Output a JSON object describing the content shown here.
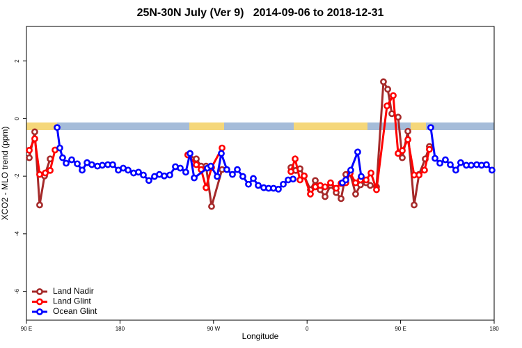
{
  "chart_data": {
    "type": "line",
    "title": "25N-30N July (Ver 9)   2014-09-06 to 2018-12-31",
    "xlabel": "Longitude",
    "ylabel": "XCO2 - MLO trend (ppm)",
    "xlim": [
      90,
      540
    ],
    "ylim": [
      -7.0,
      3.2
    ],
    "xticks": [
      {
        "value": 90,
        "label": "90 E"
      },
      180,
      {
        "value": 270,
        "label": "90 W"
      },
      {
        "value": 360,
        "label": "0"
      },
      {
        "value": 450,
        "label": "90 E"
      },
      {
        "value": 540,
        "label": "180"
      }
    ],
    "yticks": [
      -6,
      -4,
      -2,
      0,
      2
    ],
    "legend": "bottom-left",
    "series": [
      {
        "name": "Land Nadir",
        "color": "#a52a2a",
        "x": [
          92.7,
          98,
          102.7,
          107.4,
          112.8,
          180,
          245.3,
          253.4,
          258.1,
          262.8,
          268.1,
          278.2,
          310,
          344.5,
          349.1,
          353.2,
          357.2,
          363.2,
          367.9,
          372.6,
          377.3,
          382.6,
          388.0,
          392.7,
          397.3,
          401.4,
          406.7,
          411.4,
          416.8,
          420.8,
          426.8,
          433.5,
          437.6,
          441.6,
          447.6,
          451.6,
          457.0,
          463.0,
          467.7,
          473.7,
          477.7
        ],
        "values": [
          -1.36,
          -0.46,
          -3.0,
          -1.99,
          -1.4,
          null,
          -1.26,
          -1.4,
          -1.65,
          -1.65,
          -3.05,
          -1.77,
          null,
          -1.7,
          -1.8,
          -1.74,
          -1.99,
          -2.47,
          -2.15,
          -2.47,
          -2.71,
          -2.32,
          -2.57,
          -2.78,
          -1.94,
          -1.89,
          -2.62,
          -2.3,
          -2.23,
          -2.32,
          -2.37,
          1.28,
          1.02,
          0.17,
          0.05,
          -1.36,
          -0.44,
          -3.0,
          -1.94,
          -1.4,
          -0.97
        ]
      },
      {
        "name": "Land Glint",
        "color": "#ff0000",
        "x": [
          92.7,
          98,
          102.7,
          108.1,
          112.8,
          117.5,
          180,
          245.3,
          253.4,
          258.1,
          262.8,
          268.1,
          278.2,
          310,
          344.5,
          348.5,
          353.2,
          357.2,
          363.2,
          367.9,
          372.6,
          377.3,
          382.6,
          388.0,
          392.7,
          397.3,
          401.4,
          406.7,
          411.4,
          416.8,
          421.5,
          426.8,
          436.9,
          442.9,
          447.6,
          451.6,
          457.0,
          463.0,
          467.7,
          473.0,
          477.7
        ],
        "values": [
          -1.1,
          -0.7,
          -1.94,
          -1.89,
          -1.8,
          -1.09,
          null,
          -1.26,
          -1.6,
          -1.77,
          -2.4,
          -1.7,
          -1.02,
          null,
          -1.84,
          -1.4,
          -2.13,
          -1.99,
          -2.62,
          -2.37,
          -2.32,
          -2.37,
          -2.23,
          -2.42,
          -2.25,
          -2.23,
          -1.89,
          -2.23,
          -2.13,
          -2.13,
          -1.89,
          -2.47,
          0.44,
          0.8,
          -1.21,
          -1.11,
          -0.73,
          -1.96,
          -1.96,
          -1.79,
          -1.07
        ]
      },
      {
        "name": "Ocean Glint",
        "color": "#0000ff",
        "x": [
          119.5,
          122.1,
          124.8,
          128.2,
          133.5,
          138.9,
          143.6,
          148.3,
          152.9,
          158.3,
          163.0,
          168.3,
          173.0,
          178.4,
          183.1,
          187.8,
          193.1,
          197.8,
          202.5,
          207.8,
          213.2,
          217.9,
          222.6,
          227.9,
          233.3,
          238.0,
          243.3,
          247.4,
          251.4,
          264.1,
          267.4,
          273.5,
          277.5,
          282.8,
          288.2,
          292.9,
          298.2,
          303.6,
          308.3,
          313.0,
          318.3,
          323.0,
          327.7,
          332.4,
          337.1,
          341.8,
          346.5,
          370,
          394.0,
          397.3,
          402.0,
          408.7,
          412.1,
          445,
          479.0,
          483.1,
          487.8,
          493.1,
          497.8,
          503.1,
          507.8,
          513.2,
          517.9,
          523.2,
          527.9,
          532.6,
          537.9
        ],
        "values": [
          -0.31,
          -1.02,
          -1.36,
          -1.55,
          -1.43,
          -1.57,
          -1.79,
          -1.53,
          -1.6,
          -1.65,
          -1.62,
          -1.6,
          -1.6,
          -1.79,
          -1.72,
          -1.79,
          -1.89,
          -1.86,
          -1.96,
          -2.15,
          -2.01,
          -1.94,
          -1.99,
          -1.96,
          -1.67,
          -1.72,
          -1.86,
          -1.21,
          -2.06,
          -1.72,
          -1.65,
          -2.01,
          -1.21,
          -1.77,
          -1.94,
          -1.77,
          -2.01,
          -2.28,
          -2.08,
          -2.32,
          -2.4,
          -2.42,
          -2.42,
          -2.45,
          -2.28,
          -2.13,
          -2.1,
          null,
          -2.23,
          -2.13,
          -1.79,
          -1.16,
          -2.01,
          null,
          -0.31,
          -1.38,
          -1.55,
          -1.43,
          -1.6,
          -1.79,
          -1.53,
          -1.62,
          -1.62,
          -1.6,
          -1.62,
          -1.6,
          -1.79
        ]
      }
    ]
  }
}
